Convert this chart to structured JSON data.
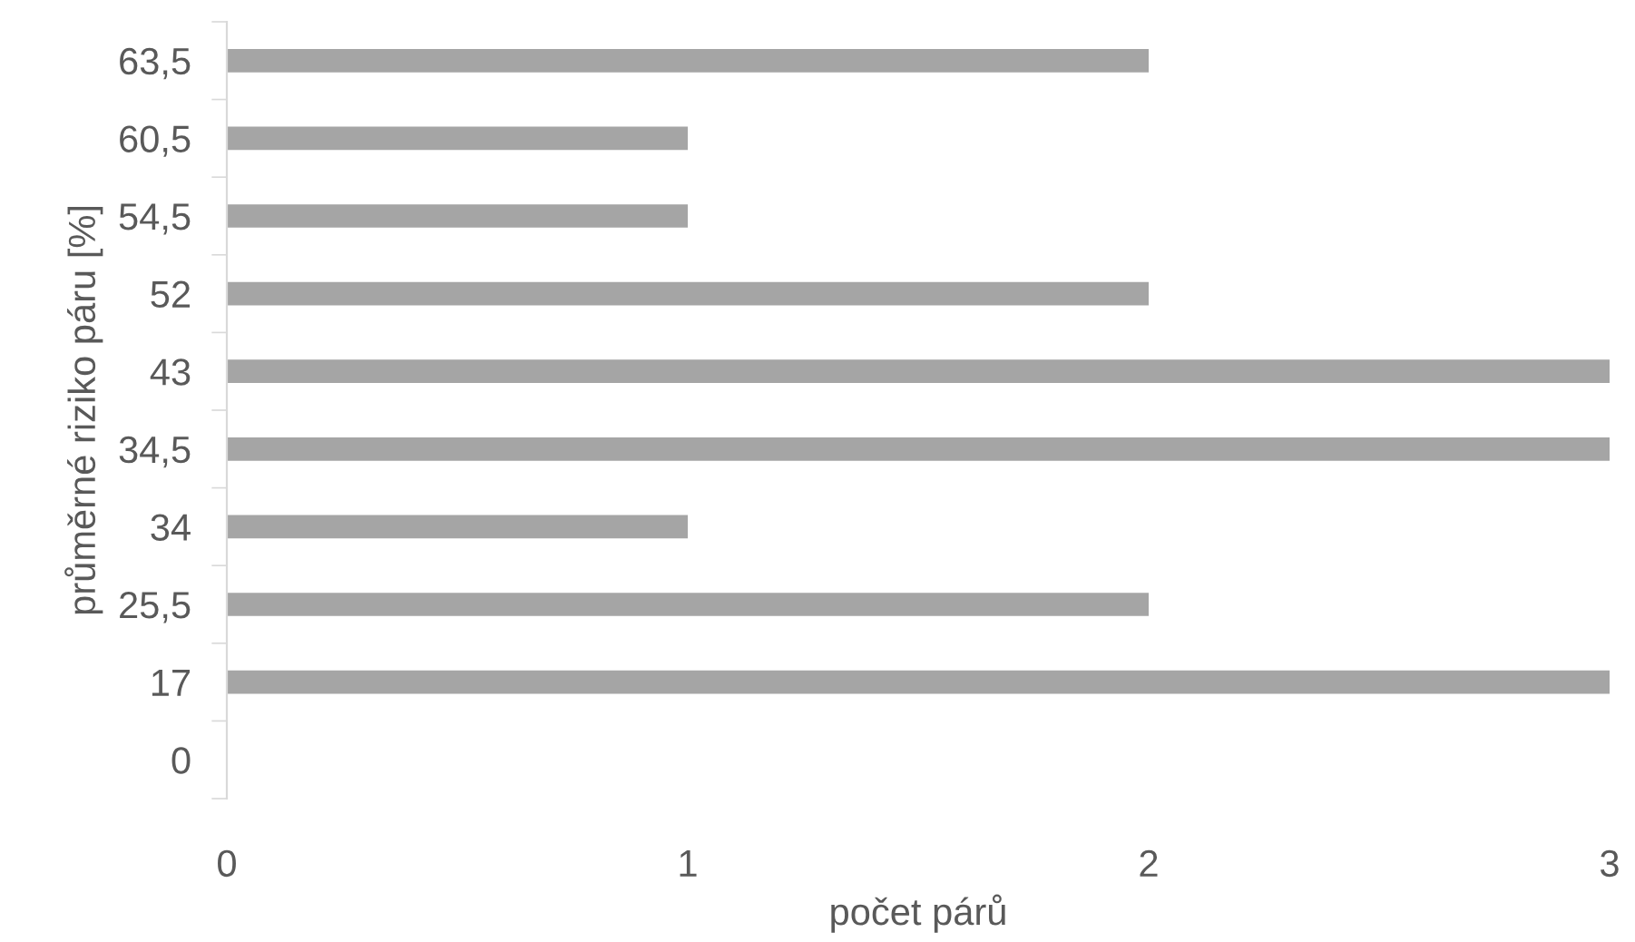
{
  "chart_data": {
    "type": "bar",
    "orientation": "horizontal",
    "xlabel": "počet párů",
    "ylabel": "průměrné riziko páru [%]",
    "categories": [
      "63,5",
      "60,5",
      "54,5",
      "52",
      "43",
      "34,5",
      "34",
      "25,5",
      "17",
      "0"
    ],
    "values": [
      2,
      1,
      1,
      2,
      3,
      3,
      1,
      2,
      3,
      0
    ],
    "color": "#a5a5a5",
    "xlim": [
      0,
      3
    ],
    "xticks": [
      0,
      1,
      2,
      3
    ],
    "grid": false,
    "legend": false
  }
}
